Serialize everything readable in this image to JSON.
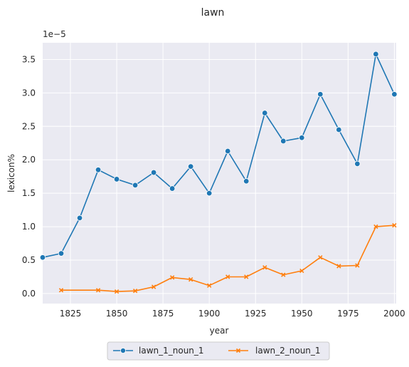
{
  "chart_data": {
    "type": "line",
    "title": "lawn",
    "xlabel": "year",
    "ylabel": "lexicon%",
    "y_multiplier_label": "1e−5",
    "xlim": [
      1810,
      2001
    ],
    "ylim": [
      -0.15,
      3.75
    ],
    "x_ticks": [
      1825,
      1850,
      1875,
      1900,
      1925,
      1950,
      1975,
      2000
    ],
    "y_ticks": [
      0.0,
      0.5,
      1.0,
      1.5,
      2.0,
      2.5,
      3.0,
      3.5
    ],
    "y_tick_labels": [
      "0.0",
      "0.5",
      "1.0",
      "1.5",
      "2.0",
      "2.5",
      "3.0",
      "3.5"
    ],
    "grid": true,
    "legend_position": "bottom-center",
    "series": [
      {
        "name": "lawn_1_noun_1",
        "color": "#1f77b4",
        "marker": "circle",
        "x": [
          1810,
          1820,
          1830,
          1840,
          1850,
          1860,
          1870,
          1880,
          1890,
          1900,
          1910,
          1920,
          1930,
          1940,
          1950,
          1960,
          1970,
          1980,
          1990,
          2000
        ],
        "y": [
          0.54,
          0.6,
          1.13,
          1.85,
          1.71,
          1.62,
          1.81,
          1.57,
          1.9,
          1.5,
          2.13,
          1.68,
          2.7,
          2.28,
          2.33,
          2.98,
          2.45,
          1.94,
          3.58,
          2.98
        ]
      },
      {
        "name": "lawn_2_noun_1",
        "color": "#ff7f0e",
        "marker": "x",
        "x": [
          1820,
          1840,
          1850,
          1860,
          1870,
          1880,
          1890,
          1900,
          1910,
          1920,
          1930,
          1940,
          1950,
          1960,
          1970,
          1980,
          1990,
          2000
        ],
        "y": [
          0.05,
          0.05,
          0.03,
          0.04,
          0.1,
          0.24,
          0.21,
          0.12,
          0.25,
          0.25,
          0.39,
          0.28,
          0.34,
          0.54,
          0.41,
          0.42,
          1.0,
          1.02
        ]
      }
    ]
  }
}
